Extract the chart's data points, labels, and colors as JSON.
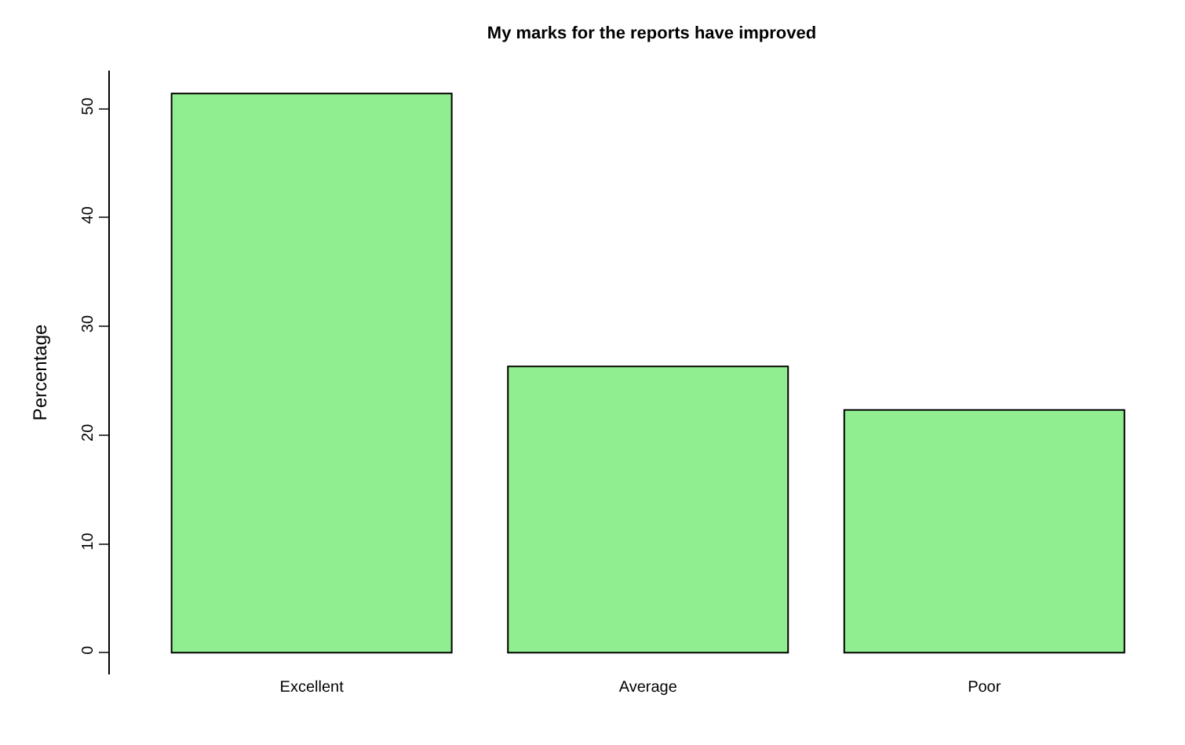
{
  "chart_data": {
    "type": "bar",
    "title": "My marks for the reports have improved",
    "ylabel": "Percentage",
    "categories": [
      "Excellent",
      "Average",
      "Poor"
    ],
    "values": [
      51.4,
      26.3,
      22.3
    ],
    "color": "#90ee90",
    "ylim": [
      -2,
      53.5
    ],
    "yticks": [
      0,
      10,
      20,
      30,
      40,
      50
    ],
    "grid": false,
    "legend": false
  }
}
